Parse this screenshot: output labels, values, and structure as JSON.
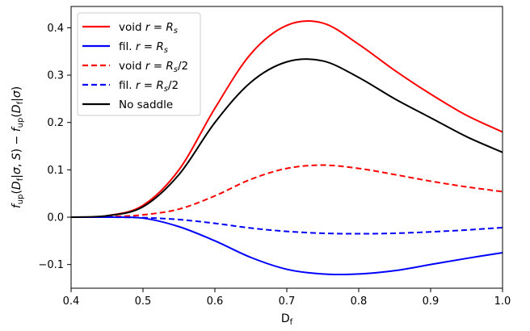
{
  "chart_data": {
    "type": "line",
    "xlabel": "D_f",
    "ylabel": "f_up(D_f|σ, S) − f_up(D_f|σ)",
    "xlim": [
      0.4,
      1.0
    ],
    "ylim": [
      -0.15,
      0.445
    ],
    "xticks": [
      0.4,
      0.5,
      0.6,
      0.7,
      0.8,
      0.9,
      1.0
    ],
    "xtick_labels": [
      "0.4",
      "0.5",
      "0.6",
      "0.7",
      "0.8",
      "0.9",
      "1.0"
    ],
    "yticks": [
      -0.1,
      0.0,
      0.1,
      0.2,
      0.3,
      0.4
    ],
    "ytick_labels": [
      "−0.1",
      "0.0",
      "0.1",
      "0.2",
      "0.3",
      "0.4"
    ],
    "grid": false,
    "legend_position": "top-left",
    "x": [
      0.4,
      0.45,
      0.5,
      0.55,
      0.6,
      0.65,
      0.7,
      0.75,
      0.8,
      0.85,
      0.9,
      0.95,
      1.0
    ],
    "series": [
      {
        "name": "void r = Rs",
        "color": "#ff0000",
        "dash": "solid",
        "values": [
          0.0,
          0.003,
          0.025,
          0.1,
          0.23,
          0.345,
          0.405,
          0.41,
          0.365,
          0.31,
          0.26,
          0.215,
          0.18
        ]
      },
      {
        "name": "fil. r = Rs",
        "color": "#0000ff",
        "dash": "solid",
        "values": [
          0.0,
          0.0,
          -0.002,
          -0.02,
          -0.05,
          -0.085,
          -0.11,
          -0.12,
          -0.12,
          -0.113,
          -0.1,
          -0.087,
          -0.075
        ]
      },
      {
        "name": "void r = Rs/2",
        "color": "#ff0000",
        "dash": "dashed",
        "values": [
          0.0,
          0.001,
          0.005,
          0.017,
          0.045,
          0.08,
          0.103,
          0.11,
          0.103,
          0.09,
          0.076,
          0.064,
          0.054
        ]
      },
      {
        "name": "fil. r = Rs/2",
        "color": "#0000ff",
        "dash": "dashed",
        "values": [
          0.0,
          0.0,
          -0.001,
          -0.005,
          -0.013,
          -0.023,
          -0.03,
          -0.034,
          -0.035,
          -0.034,
          -0.031,
          -0.027,
          -0.022
        ]
      },
      {
        "name": "No saddle",
        "color": "#000000",
        "dash": "solid",
        "values": [
          0.0,
          0.003,
          0.022,
          0.09,
          0.2,
          0.285,
          0.328,
          0.33,
          0.295,
          0.25,
          0.21,
          0.17,
          0.137
        ]
      }
    ]
  }
}
